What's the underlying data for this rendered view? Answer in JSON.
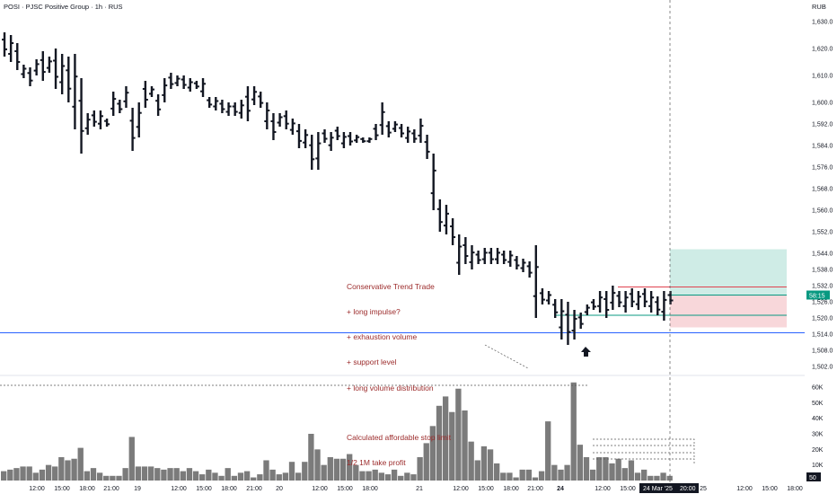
{
  "header": {
    "title": "POSI · PJSC Positive Group · 1h · RUS",
    "currency": "RUB"
  },
  "colors": {
    "bar": "#131722",
    "volume": "#7b7b7b",
    "support_line": "#2962ff",
    "target_zone": "#cfece6",
    "stop_zone": "#f8d7da",
    "entry_line": "#089981",
    "stop_line": "#e0424f",
    "annotation": "#9c2b2b",
    "price_badge": "#089981"
  },
  "annotation": {
    "lines": [
      "Conservative Trend Trade",
      "+ long impulse?",
      "+ exhaustion volume",
      "+ support level",
      "+ long volume distribution",
      "",
      "Calculated affordable stop limit",
      "1/2 1M take profit"
    ]
  },
  "position": {
    "current_price_label": "58:15",
    "entry": 1528.5,
    "stop": 1519.5,
    "target": 1545.5,
    "support_level": 1514.5
  },
  "chart_data": {
    "type": "ohlc",
    "interval": "1h",
    "y_axis": {
      "ticks": [
        "1,630.0",
        "1,620.0",
        "1,610.0",
        "1,600.0",
        "1,592.0",
        "1,584.0",
        "1,576.0",
        "1,568.0",
        "1,560.0",
        "1,552.0",
        "1,544.0",
        "1,538.0",
        "1,532.0",
        "1,526.0",
        "1,520.0",
        "1,514.0",
        "1,508.0",
        "1,502.0"
      ],
      "range": [
        1499,
        1633
      ]
    },
    "volume_axis": {
      "ticks": [
        "60K",
        "50K",
        "40K",
        "30K",
        "20K",
        "10K"
      ],
      "range": [
        0,
        68000
      ],
      "last_label": "50"
    },
    "x_axis": {
      "ticks": [
        "12:00",
        "15:00",
        "18:00",
        "21:00",
        "19",
        "12:00",
        "15:00",
        "18:00",
        "21:00",
        "20",
        "12:00",
        "15:00",
        "18:00",
        "21",
        "12:00",
        "15:00",
        "18:00",
        "21:00",
        "24",
        "12:00",
        "15:00",
        "18:00",
        "12:00",
        "15:00",
        "18:00"
      ],
      "cursor_label": "24 Mar '25",
      "cursor_time": "20:00",
      "partial_label": "25"
    },
    "bars": [
      {
        "l": 1617,
        "h": 1626
      },
      {
        "l": 1615,
        "h": 1625
      },
      {
        "l": 1612,
        "h": 1622
      },
      {
        "l": 1609,
        "h": 1614
      },
      {
        "l": 1606,
        "h": 1613
      },
      {
        "l": 1610,
        "h": 1616
      },
      {
        "l": 1608,
        "h": 1619
      },
      {
        "l": 1611,
        "h": 1617
      },
      {
        "l": 1605,
        "h": 1620
      },
      {
        "l": 1603,
        "h": 1618
      },
      {
        "l": 1600,
        "h": 1617
      },
      {
        "l": 1590,
        "h": 1618
      },
      {
        "l": 1581,
        "h": 1609
      },
      {
        "l": 1588,
        "h": 1596
      },
      {
        "l": 1591,
        "h": 1597
      },
      {
        "l": 1590,
        "h": 1597
      },
      {
        "l": 1591,
        "h": 1594
      },
      {
        "l": 1595,
        "h": 1604
      },
      {
        "l": 1596,
        "h": 1601
      },
      {
        "l": 1598,
        "h": 1606
      },
      {
        "l": 1582,
        "h": 1598
      },
      {
        "l": 1587,
        "h": 1600
      },
      {
        "l": 1598,
        "h": 1608
      },
      {
        "l": 1602,
        "h": 1606
      },
      {
        "l": 1595,
        "h": 1603
      },
      {
        "l": 1600,
        "h": 1609
      },
      {
        "l": 1605,
        "h": 1611
      },
      {
        "l": 1606,
        "h": 1610
      },
      {
        "l": 1605,
        "h": 1610
      },
      {
        "l": 1604,
        "h": 1609
      },
      {
        "l": 1605,
        "h": 1608
      },
      {
        "l": 1602,
        "h": 1609
      },
      {
        "l": 1598,
        "h": 1602
      },
      {
        "l": 1597,
        "h": 1602
      },
      {
        "l": 1596,
        "h": 1601
      },
      {
        "l": 1595,
        "h": 1600
      },
      {
        "l": 1595,
        "h": 1600
      },
      {
        "l": 1594,
        "h": 1601
      },
      {
        "l": 1593,
        "h": 1606
      },
      {
        "l": 1599,
        "h": 1606
      },
      {
        "l": 1598,
        "h": 1604
      },
      {
        "l": 1590,
        "h": 1600
      },
      {
        "l": 1586,
        "h": 1596
      },
      {
        "l": 1591,
        "h": 1596
      },
      {
        "l": 1590,
        "h": 1597
      },
      {
        "l": 1588,
        "h": 1594
      },
      {
        "l": 1583,
        "h": 1592
      },
      {
        "l": 1583,
        "h": 1590
      },
      {
        "l": 1575,
        "h": 1588
      },
      {
        "l": 1575,
        "h": 1589
      },
      {
        "l": 1585,
        "h": 1590
      },
      {
        "l": 1582,
        "h": 1589
      },
      {
        "l": 1586,
        "h": 1591
      },
      {
        "l": 1583,
        "h": 1589
      },
      {
        "l": 1584,
        "h": 1589
      },
      {
        "l": 1585,
        "h": 1588
      },
      {
        "l": 1585,
        "h": 1587
      },
      {
        "l": 1585,
        "h": 1587
      },
      {
        "l": 1586,
        "h": 1592
      },
      {
        "l": 1588,
        "h": 1600
      },
      {
        "l": 1587,
        "h": 1593
      },
      {
        "l": 1589,
        "h": 1593
      },
      {
        "l": 1587,
        "h": 1592
      },
      {
        "l": 1585,
        "h": 1591
      },
      {
        "l": 1585,
        "h": 1590
      },
      {
        "l": 1585,
        "h": 1594
      },
      {
        "l": 1579,
        "h": 1588
      },
      {
        "l": 1560,
        "h": 1581
      },
      {
        "l": 1552,
        "h": 1564
      },
      {
        "l": 1551,
        "h": 1562
      },
      {
        "l": 1547,
        "h": 1557
      },
      {
        "l": 1536,
        "h": 1551
      },
      {
        "l": 1540,
        "h": 1550
      },
      {
        "l": 1538,
        "h": 1547
      },
      {
        "l": 1540,
        "h": 1545
      },
      {
        "l": 1540,
        "h": 1546
      },
      {
        "l": 1540,
        "h": 1546
      },
      {
        "l": 1540,
        "h": 1546
      },
      {
        "l": 1540,
        "h": 1545
      },
      {
        "l": 1539,
        "h": 1545
      },
      {
        "l": 1538,
        "h": 1543
      },
      {
        "l": 1537,
        "h": 1542
      },
      {
        "l": 1535,
        "h": 1541
      },
      {
        "l": 1520,
        "h": 1547
      },
      {
        "l": 1525,
        "h": 1531
      },
      {
        "l": 1525,
        "h": 1530
      },
      {
        "l": 1520,
        "h": 1527
      },
      {
        "l": 1512,
        "h": 1527
      },
      {
        "l": 1510,
        "h": 1526
      },
      {
        "l": 1512,
        "h": 1523
      },
      {
        "l": 1516,
        "h": 1522
      },
      {
        "l": 1521,
        "h": 1525
      },
      {
        "l": 1523,
        "h": 1527
      },
      {
        "l": 1522,
        "h": 1530
      },
      {
        "l": 1520,
        "h": 1530
      },
      {
        "l": 1523,
        "h": 1532
      },
      {
        "l": 1524,
        "h": 1530
      },
      {
        "l": 1522,
        "h": 1530
      },
      {
        "l": 1524,
        "h": 1531
      },
      {
        "l": 1523,
        "h": 1530
      },
      {
        "l": 1524,
        "h": 1531
      },
      {
        "l": 1522,
        "h": 1530
      },
      {
        "l": 1521,
        "h": 1528
      },
      {
        "l": 1519,
        "h": 1530
      },
      {
        "l": 1525,
        "h": 1530
      }
    ],
    "volume": [
      6,
      7,
      8,
      9,
      9,
      5,
      7,
      10,
      9,
      15,
      13,
      14,
      21,
      6,
      8,
      5,
      3,
      3,
      3,
      8,
      28,
      9,
      9,
      9,
      8,
      7,
      8,
      8,
      6,
      8,
      6,
      4,
      7,
      5,
      3,
      8,
      3,
      5,
      6,
      2,
      4,
      13,
      7,
      4,
      5,
      12,
      5,
      12,
      30,
      20,
      10,
      15,
      14,
      14,
      17,
      10,
      6,
      6,
      7,
      5,
      4,
      7,
      3,
      5,
      4,
      15,
      24,
      35,
      48,
      54,
      44,
      59,
      45,
      25,
      13,
      22,
      20,
      11,
      5,
      5,
      2,
      7,
      7,
      2,
      6,
      38,
      10,
      7,
      10,
      63,
      23,
      15,
      7,
      15,
      15,
      11,
      14,
      8,
      13,
      5,
      7,
      3,
      3,
      5,
      3
    ]
  }
}
